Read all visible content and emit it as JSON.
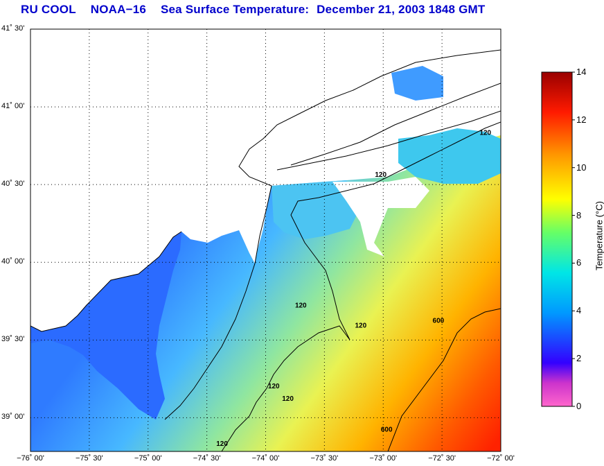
{
  "title": {
    "program": "RU COOL",
    "satellite": "NOAA−16",
    "product": "Sea Surface Temperature:",
    "datetime": "December 21, 2003 1848 GMT"
  },
  "map": {
    "lon_range": [
      -76.0,
      -72.0
    ],
    "lat_range": [
      38.7833,
      41.5
    ],
    "grid": "dotted",
    "x_ticks": [
      {
        "value": -76.0,
        "label": "−76˚ 00'"
      },
      {
        "value": -75.5,
        "label": "−75˚ 30'"
      },
      {
        "value": -75.0,
        "label": "−75˚ 00'"
      },
      {
        "value": -74.5,
        "label": "−74˚ 30'"
      },
      {
        "value": -74.0,
        "label": "−74˚ 00'"
      },
      {
        "value": -73.5,
        "label": "−73˚ 30'"
      },
      {
        "value": -73.0,
        "label": "−73˚ 00'"
      },
      {
        "value": -72.5,
        "label": "−72˚ 30'"
      },
      {
        "value": -72.0,
        "label": "−72˚ 00'"
      }
    ],
    "y_ticks": [
      {
        "value": 41.5,
        "label": "41˚ 30'"
      },
      {
        "value": 41.0,
        "label": "41˚ 00'"
      },
      {
        "value": 40.5,
        "label": "40˚ 30'"
      },
      {
        "value": 40.0,
        "label": "40˚ 00'"
      },
      {
        "value": 39.5,
        "label": "39˚ 30'"
      },
      {
        "value": 39.0,
        "label": "39˚ 00'"
      }
    ],
    "contour_labels": [
      {
        "text": "120",
        "lon": -72.18,
        "lat": 40.82
      },
      {
        "text": "120",
        "lon": -73.07,
        "lat": 40.55
      },
      {
        "text": "120",
        "lon": -73.24,
        "lat": 39.58
      },
      {
        "text": "120",
        "lon": -73.75,
        "lat": 39.71
      },
      {
        "text": "120",
        "lon": -73.98,
        "lat": 39.19
      },
      {
        "text": "120",
        "lon": -73.86,
        "lat": 39.11
      },
      {
        "text": "120",
        "lon": -74.42,
        "lat": 38.82
      },
      {
        "text": "600",
        "lon": -72.58,
        "lat": 39.61
      },
      {
        "text": "600",
        "lon": -73.02,
        "lat": 38.91
      }
    ]
  },
  "colorbar": {
    "min": 0,
    "max": 14,
    "ticks": [
      "0",
      "2",
      "4",
      "6",
      "8",
      "10",
      "12",
      "14"
    ],
    "label": "Temperature (°C)",
    "colors": [
      "#ff66cc",
      "#7700cc",
      "#0000ff",
      "#0099ff",
      "#00e6e6",
      "#66ff66",
      "#ffff00",
      "#ff9900",
      "#ff0000",
      "#990000"
    ]
  }
}
